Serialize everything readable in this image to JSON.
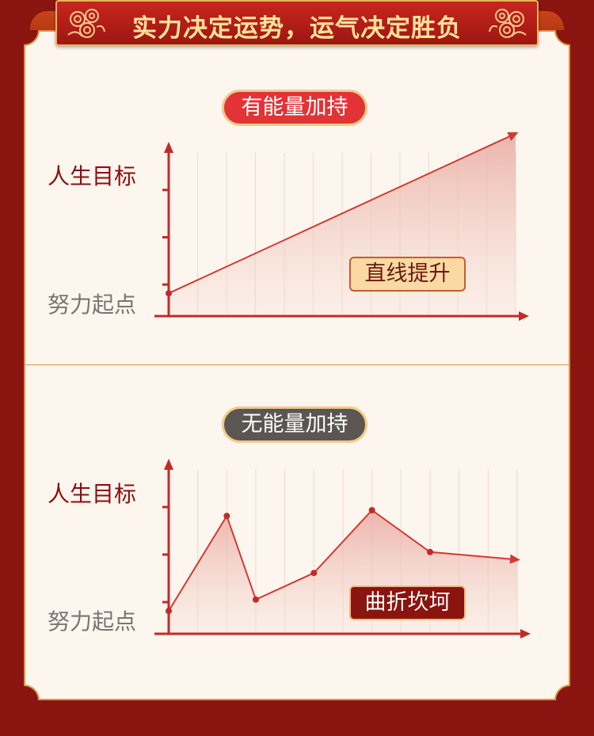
{
  "header": {
    "title": "实力决定运势，运气决定胜负"
  },
  "panels": [
    {
      "label": "有能量加持",
      "y_top_label": "人生目标",
      "y_bottom_label": "努力起点",
      "annotation": "直线提升"
    },
    {
      "label": "无能量加持",
      "y_top_label": "人生目标",
      "y_bottom_label": "努力起点",
      "annotation": "曲折坎坷"
    }
  ],
  "chart_data": [
    {
      "type": "area",
      "x": [
        0,
        12
      ],
      "values": [
        0.12,
        0.96
      ],
      "ylim": [
        0,
        1
      ],
      "grid": true
    },
    {
      "type": "area",
      "x": [
        0,
        2,
        3,
        5,
        7,
        9,
        12
      ],
      "values": [
        0.12,
        0.62,
        0.18,
        0.32,
        0.65,
        0.43,
        0.39
      ],
      "ylim": [
        0,
        1
      ],
      "grid": true
    }
  ],
  "colors": {
    "accent": "#d23a35",
    "banner": "#b81d18",
    "gold": "#e9b25a",
    "goal_text": "#8a0f0f",
    "start_text": "#7a7570"
  }
}
